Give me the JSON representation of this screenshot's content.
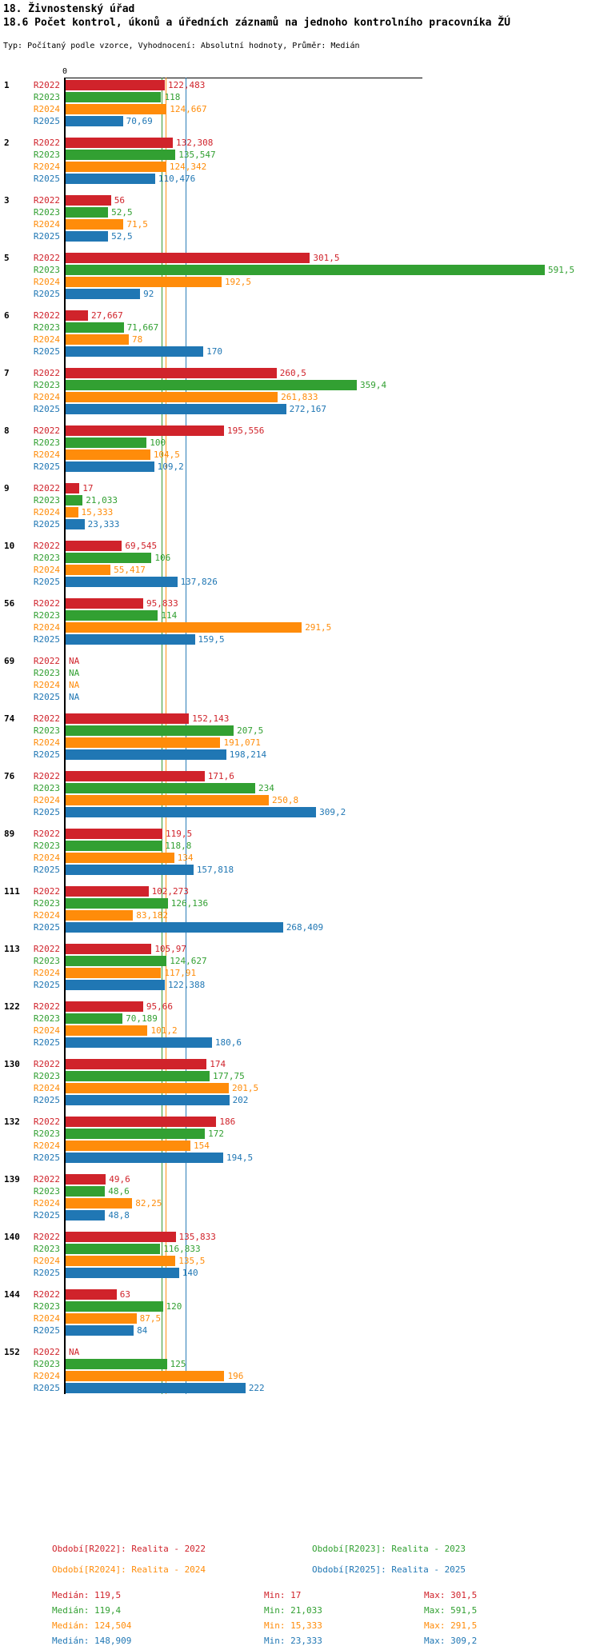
{
  "header": {
    "title": "18. Živnostenský úřad",
    "subtitle": "18.6 Počet kontrol, úkonů a úředních záznamů na jednoho kontrolního pracovníka ŽÚ",
    "meta": "Typ: Počítaný podle vzorce, Vyhodnocení: Absolutní hodnoty, Průměr: Medián"
  },
  "chart_data": {
    "type": "bar",
    "orientation": "horizontal",
    "axis_origin_label": "0",
    "xlim": [
      0,
      660
    ],
    "grid": false,
    "series_names": [
      "R2022",
      "R2023",
      "R2024",
      "R2025"
    ],
    "colors": {
      "R2022": "#d0232b",
      "R2023": "#32a032",
      "R2024": "#ff8c0a",
      "R2025": "#2077b4"
    },
    "median_lines": [
      {
        "series": "R2022",
        "value": 119.5
      },
      {
        "series": "R2023",
        "value": 119.4
      },
      {
        "series": "R2024",
        "value": 124.504
      },
      {
        "series": "R2025",
        "value": 148.909
      }
    ],
    "na_text": "NA",
    "groups": [
      {
        "id": "1",
        "rows": [
          {
            "series": "R2022",
            "label": "122,483",
            "value": 122.483
          },
          {
            "series": "R2023",
            "label": "118",
            "value": 118
          },
          {
            "series": "R2024",
            "label": "124,667",
            "value": 124.667
          },
          {
            "series": "R2025",
            "label": "70,69",
            "value": 70.69
          }
        ]
      },
      {
        "id": "2",
        "rows": [
          {
            "series": "R2022",
            "label": "132,308",
            "value": 132.308
          },
          {
            "series": "R2023",
            "label": "135,547",
            "value": 135.547
          },
          {
            "series": "R2024",
            "label": "124,342",
            "value": 124.342
          },
          {
            "series": "R2025",
            "label": "110,476",
            "value": 110.476
          }
        ]
      },
      {
        "id": "3",
        "rows": [
          {
            "series": "R2022",
            "label": "56",
            "value": 56
          },
          {
            "series": "R2023",
            "label": "52,5",
            "value": 52.5
          },
          {
            "series": "R2024",
            "label": "71,5",
            "value": 71.5
          },
          {
            "series": "R2025",
            "label": "52,5",
            "value": 52.5
          }
        ]
      },
      {
        "id": "5",
        "rows": [
          {
            "series": "R2022",
            "label": "301,5",
            "value": 301.5
          },
          {
            "series": "R2023",
            "label": "591,5",
            "value": 591.5
          },
          {
            "series": "R2024",
            "label": "192,5",
            "value": 192.5
          },
          {
            "series": "R2025",
            "label": "92",
            "value": 92
          }
        ]
      },
      {
        "id": "6",
        "rows": [
          {
            "series": "R2022",
            "label": "27,667",
            "value": 27.667
          },
          {
            "series": "R2023",
            "label": "71,667",
            "value": 71.667
          },
          {
            "series": "R2024",
            "label": "78",
            "value": 78
          },
          {
            "series": "R2025",
            "label": "170",
            "value": 170
          }
        ]
      },
      {
        "id": "7",
        "rows": [
          {
            "series": "R2022",
            "label": "260,5",
            "value": 260.5
          },
          {
            "series": "R2023",
            "label": "359,4",
            "value": 359.4
          },
          {
            "series": "R2024",
            "label": "261,833",
            "value": 261.833
          },
          {
            "series": "R2025",
            "label": "272,167",
            "value": 272.167
          }
        ]
      },
      {
        "id": "8",
        "rows": [
          {
            "series": "R2022",
            "label": "195,556",
            "value": 195.556
          },
          {
            "series": "R2023",
            "label": "100",
            "value": 100
          },
          {
            "series": "R2024",
            "label": "104,5",
            "value": 104.5
          },
          {
            "series": "R2025",
            "label": "109,2",
            "value": 109.2
          }
        ]
      },
      {
        "id": "9",
        "rows": [
          {
            "series": "R2022",
            "label": "17",
            "value": 17
          },
          {
            "series": "R2023",
            "label": "21,033",
            "value": 21.033
          },
          {
            "series": "R2024",
            "label": "15,333",
            "value": 15.333
          },
          {
            "series": "R2025",
            "label": "23,333",
            "value": 23.333
          }
        ]
      },
      {
        "id": "10",
        "rows": [
          {
            "series": "R2022",
            "label": "69,545",
            "value": 69.545
          },
          {
            "series": "R2023",
            "label": "106",
            "value": 106
          },
          {
            "series": "R2024",
            "label": "55,417",
            "value": 55.417
          },
          {
            "series": "R2025",
            "label": "137,826",
            "value": 137.826
          }
        ]
      },
      {
        "id": "56",
        "rows": [
          {
            "series": "R2022",
            "label": "95,833",
            "value": 95.833
          },
          {
            "series": "R2023",
            "label": "114",
            "value": 114
          },
          {
            "series": "R2024",
            "label": "291,5",
            "value": 291.5
          },
          {
            "series": "R2025",
            "label": "159,5",
            "value": 159.5
          }
        ]
      },
      {
        "id": "69",
        "rows": [
          {
            "series": "R2022",
            "label": "NA",
            "value": null
          },
          {
            "series": "R2023",
            "label": "NA",
            "value": null
          },
          {
            "series": "R2024",
            "label": "NA",
            "value": null
          },
          {
            "series": "R2025",
            "label": "NA",
            "value": null
          }
        ]
      },
      {
        "id": "74",
        "rows": [
          {
            "series": "R2022",
            "label": "152,143",
            "value": 152.143
          },
          {
            "series": "R2023",
            "label": "207,5",
            "value": 207.5
          },
          {
            "series": "R2024",
            "label": "191,071",
            "value": 191.071
          },
          {
            "series": "R2025",
            "label": "198,214",
            "value": 198.214
          }
        ]
      },
      {
        "id": "76",
        "rows": [
          {
            "series": "R2022",
            "label": "171,6",
            "value": 171.6
          },
          {
            "series": "R2023",
            "label": "234",
            "value": 234
          },
          {
            "series": "R2024",
            "label": "250,8",
            "value": 250.8
          },
          {
            "series": "R2025",
            "label": "309,2",
            "value": 309.2
          }
        ]
      },
      {
        "id": "89",
        "rows": [
          {
            "series": "R2022",
            "label": "119,5",
            "value": 119.5
          },
          {
            "series": "R2023",
            "label": "118,8",
            "value": 118.8
          },
          {
            "series": "R2024",
            "label": "134",
            "value": 134
          },
          {
            "series": "R2025",
            "label": "157,818",
            "value": 157.818
          }
        ]
      },
      {
        "id": "111",
        "rows": [
          {
            "series": "R2022",
            "label": "102,273",
            "value": 102.273
          },
          {
            "series": "R2023",
            "label": "126,136",
            "value": 126.136
          },
          {
            "series": "R2024",
            "label": "83,182",
            "value": 83.182
          },
          {
            "series": "R2025",
            "label": "268,409",
            "value": 268.409
          }
        ]
      },
      {
        "id": "113",
        "rows": [
          {
            "series": "R2022",
            "label": "105,97",
            "value": 105.97
          },
          {
            "series": "R2023",
            "label": "124,627",
            "value": 124.627
          },
          {
            "series": "R2024",
            "label": "117,91",
            "value": 117.91
          },
          {
            "series": "R2025",
            "label": "122,388",
            "value": 122.388
          }
        ]
      },
      {
        "id": "122",
        "rows": [
          {
            "series": "R2022",
            "label": "95,66",
            "value": 95.66
          },
          {
            "series": "R2023",
            "label": "70,189",
            "value": 70.189
          },
          {
            "series": "R2024",
            "label": "101,2",
            "value": 101.2
          },
          {
            "series": "R2025",
            "label": "180,6",
            "value": 180.6
          }
        ]
      },
      {
        "id": "130",
        "rows": [
          {
            "series": "R2022",
            "label": "174",
            "value": 174
          },
          {
            "series": "R2023",
            "label": "177,75",
            "value": 177.75
          },
          {
            "series": "R2024",
            "label": "201,5",
            "value": 201.5
          },
          {
            "series": "R2025",
            "label": "202",
            "value": 202
          }
        ]
      },
      {
        "id": "132",
        "rows": [
          {
            "series": "R2022",
            "label": "186",
            "value": 186
          },
          {
            "series": "R2023",
            "label": "172",
            "value": 172
          },
          {
            "series": "R2024",
            "label": "154",
            "value": 154
          },
          {
            "series": "R2025",
            "label": "194,5",
            "value": 194.5
          }
        ]
      },
      {
        "id": "139",
        "rows": [
          {
            "series": "R2022",
            "label": "49,6",
            "value": 49.6
          },
          {
            "series": "R2023",
            "label": "48,6",
            "value": 48.6
          },
          {
            "series": "R2024",
            "label": "82,25",
            "value": 82.25
          },
          {
            "series": "R2025",
            "label": "48,8",
            "value": 48.8
          }
        ]
      },
      {
        "id": "140",
        "rows": [
          {
            "series": "R2022",
            "label": "135,833",
            "value": 135.833
          },
          {
            "series": "R2023",
            "label": "116,833",
            "value": 116.833
          },
          {
            "series": "R2024",
            "label": "135,5",
            "value": 135.5
          },
          {
            "series": "R2025",
            "label": "140",
            "value": 140
          }
        ]
      },
      {
        "id": "144",
        "rows": [
          {
            "series": "R2022",
            "label": "63",
            "value": 63
          },
          {
            "series": "R2023",
            "label": "120",
            "value": 120
          },
          {
            "series": "R2024",
            "label": "87,5",
            "value": 87.5
          },
          {
            "series": "R2025",
            "label": "84",
            "value": 84
          }
        ]
      },
      {
        "id": "152",
        "rows": [
          {
            "series": "R2022",
            "label": "NA",
            "value": null
          },
          {
            "series": "R2023",
            "label": "125",
            "value": 125
          },
          {
            "series": "R2024",
            "label": "196",
            "value": 196
          },
          {
            "series": "R2025",
            "label": "222",
            "value": 222
          }
        ]
      }
    ],
    "legend": [
      {
        "series": "R2022",
        "label": "Období[R2022]: Realita - 2022"
      },
      {
        "series": "R2023",
        "label": "Období[R2023]: Realita - 2023"
      },
      {
        "series": "R2024",
        "label": "Období[R2024]: Realita - 2024"
      },
      {
        "series": "R2025",
        "label": "Období[R2025]: Realita - 2025"
      }
    ],
    "stats": {
      "median_prefix": "Medián:",
      "min_prefix": "Min:",
      "max_prefix": "Max:",
      "rows": [
        {
          "series": "R2022",
          "median": "119,5",
          "min": "17",
          "max": "301,5"
        },
        {
          "series": "R2023",
          "median": "119,4",
          "min": "21,033",
          "max": "591,5"
        },
        {
          "series": "R2024",
          "median": "124,504",
          "min": "15,333",
          "max": "291,5"
        },
        {
          "series": "R2025",
          "median": "148,909",
          "min": "23,333",
          "max": "309,2"
        }
      ]
    }
  }
}
